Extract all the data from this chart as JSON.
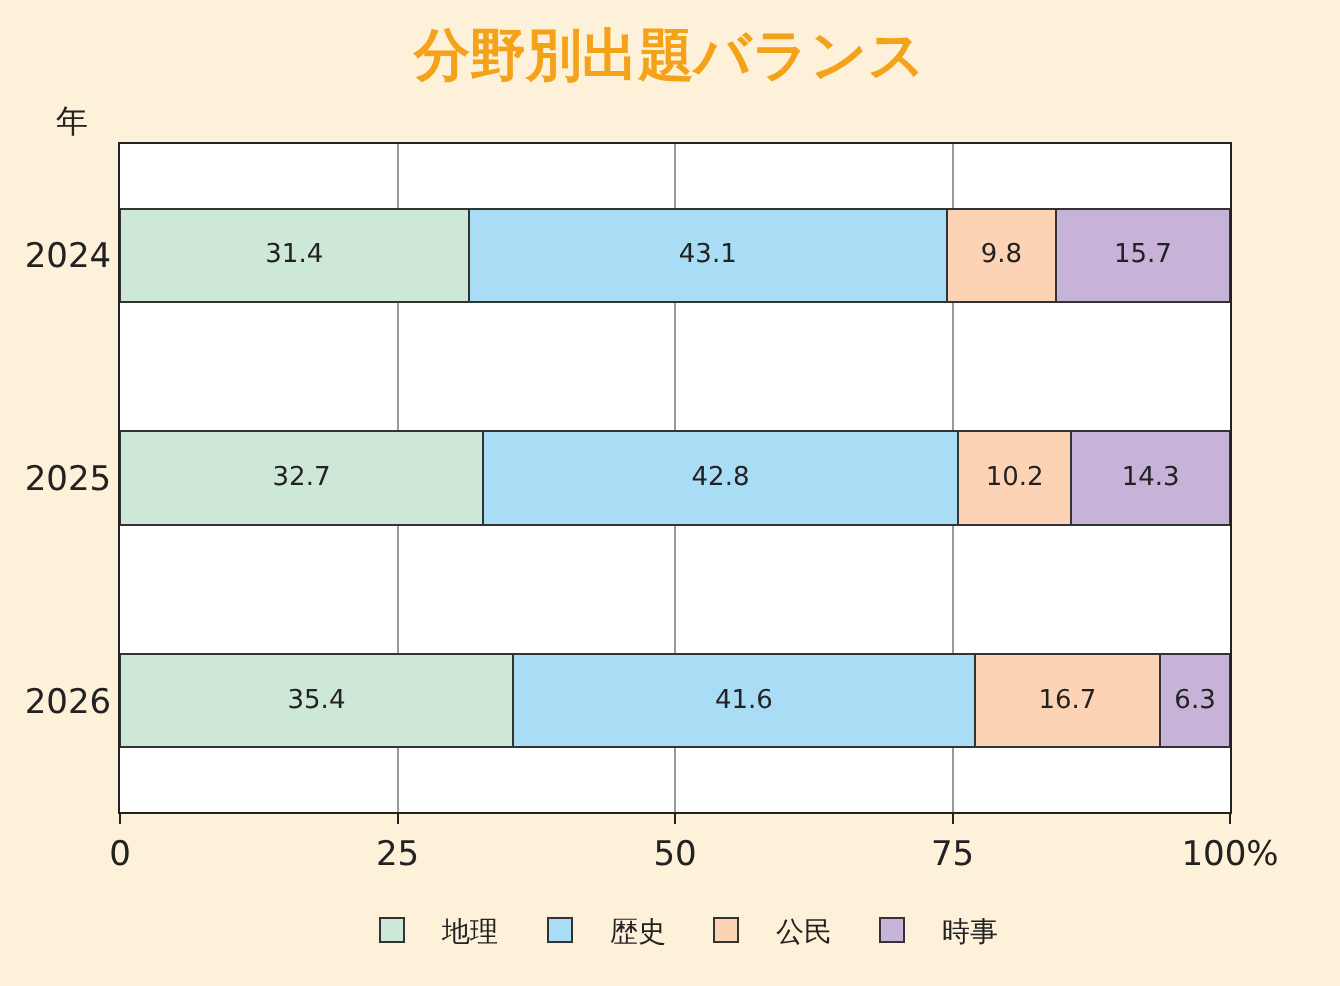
{
  "chart_data": {
    "type": "bar",
    "orientation": "horizontal",
    "stacked": true,
    "title": "分野別出題バランス",
    "ylabel": "年",
    "categories": [
      "2024",
      "2025",
      "2026"
    ],
    "series": [
      {
        "name": "地理",
        "color": "#cde8d6",
        "values": [
          31.4,
          32.7,
          35.4
        ]
      },
      {
        "name": "歴史",
        "color": "#a9ddf6",
        "values": [
          43.1,
          42.8,
          41.6
        ]
      },
      {
        "name": "公民",
        "color": "#fdd3b5",
        "values": [
          9.8,
          10.2,
          16.7
        ]
      },
      {
        "name": "時事",
        "color": "#c8b3d8",
        "values": [
          15.7,
          14.3,
          6.3
        ]
      }
    ],
    "xlim": [
      0,
      100
    ],
    "xticks": [
      0,
      25,
      50,
      75,
      {
        "value": 100,
        "label": "100%"
      }
    ],
    "grid": "x",
    "legend": "bottom",
    "data_labels": true
  }
}
